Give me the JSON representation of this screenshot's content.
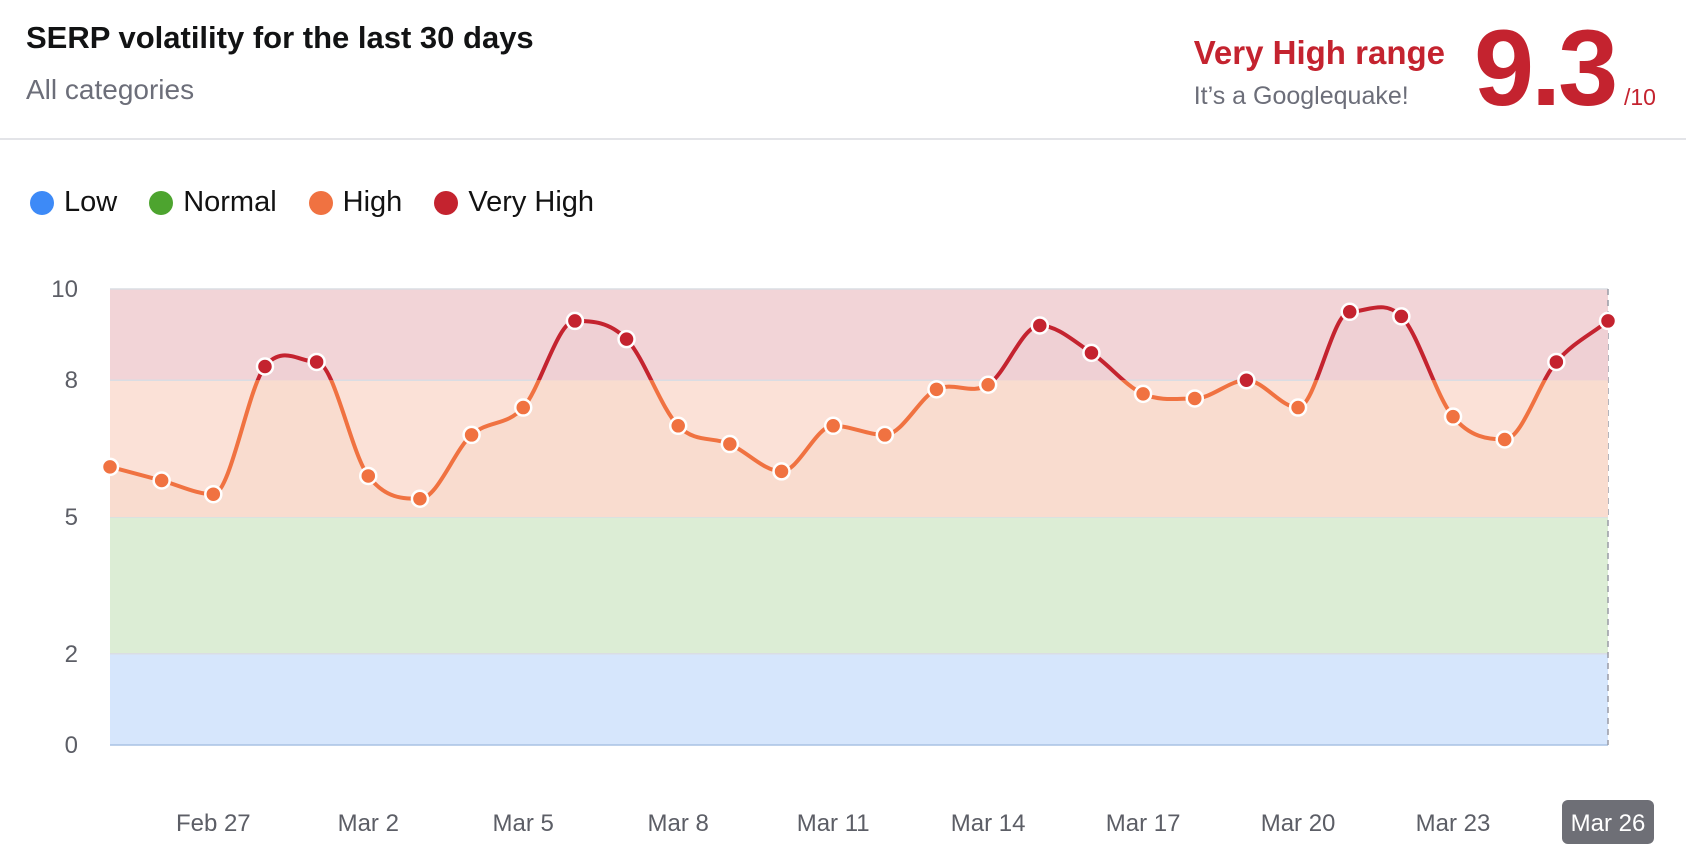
{
  "header": {
    "title": "SERP volatility for the last 30 days",
    "subtitle": "All categories",
    "range_label": "Very High range",
    "range_desc": "It’s a Googlequake!",
    "score": "9.3",
    "score_max": "/10"
  },
  "legend": [
    {
      "label": "Low",
      "color": "#3d8af7"
    },
    {
      "label": "Normal",
      "color": "#4da42f"
    },
    {
      "label": "High",
      "color": "#f07241"
    },
    {
      "label": "Very High",
      "color": "#c4232f"
    }
  ],
  "chart_data": {
    "type": "line",
    "title": "SERP volatility for the last 30 days",
    "subtitle": "All categories",
    "xlabel": "",
    "ylabel": "",
    "ylim": [
      0,
      10
    ],
    "yticks": [
      0,
      2,
      5,
      8,
      10
    ],
    "x_tick_labels": [
      "Feb 27",
      "Mar 2",
      "Mar 5",
      "Mar 8",
      "Mar 11",
      "Mar 14",
      "Mar 17",
      "Mar 20",
      "Mar 23",
      "Mar 26"
    ],
    "active_x_label": "Mar 26",
    "x": [
      "Feb 25",
      "Feb 26",
      "Feb 27",
      "Feb 28",
      "Mar 1",
      "Mar 2",
      "Mar 3",
      "Mar 4",
      "Mar 5",
      "Mar 6",
      "Mar 7",
      "Mar 8",
      "Mar 9",
      "Mar 10",
      "Mar 11",
      "Mar 12",
      "Mar 13",
      "Mar 14",
      "Mar 15",
      "Mar 16",
      "Mar 17",
      "Mar 18",
      "Mar 19",
      "Mar 20",
      "Mar 21",
      "Mar 22",
      "Mar 23",
      "Mar 24",
      "Mar 25",
      "Mar 26"
    ],
    "series": [
      {
        "values": [
          6.1,
          5.8,
          5.5,
          8.3,
          8.4,
          5.9,
          5.4,
          6.8,
          7.4,
          9.3,
          8.9,
          7.0,
          6.6,
          6.0,
          7.0,
          6.8,
          7.8,
          7.9,
          9.2,
          8.6,
          7.7,
          7.6,
          8.0,
          7.4,
          9.5,
          9.4,
          7.2,
          6.7,
          8.4,
          9.3
        ]
      }
    ],
    "bands": [
      {
        "name": "Low",
        "from": 0,
        "to": 2,
        "color": "#d6e6fc"
      },
      {
        "name": "Normal",
        "from": 2,
        "to": 5,
        "color": "#dcedd5"
      },
      {
        "name": "High",
        "from": 5,
        "to": 8,
        "color": "#fbe1d7"
      },
      {
        "name": "Very High",
        "from": 8,
        "to": 10,
        "color": "#f2d4d7"
      }
    ],
    "colors": {
      "high": "#f07241",
      "very_high": "#c4232f"
    },
    "grid": true,
    "legend_position": "top-left"
  }
}
